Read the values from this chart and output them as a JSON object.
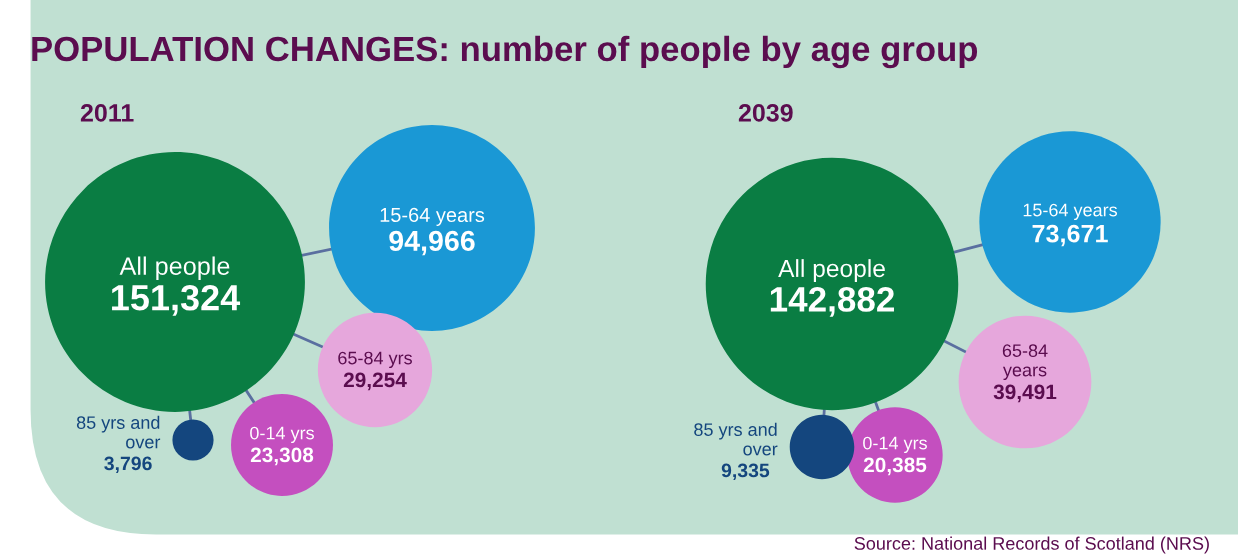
{
  "chart_data": [
    {
      "type": "other",
      "title": "POPULATION CHANGES: number of people by age group",
      "subtitle": "2011",
      "categories": [
        "All people",
        "15-64 years",
        "65-84 yrs",
        "0-14 yrs",
        "85 yrs and\nover"
      ],
      "values": [
        151324,
        94966,
        29254,
        23308,
        3796
      ],
      "value_labels": [
        "151,324",
        "94,966",
        "29,254",
        "23,308",
        "3,796"
      ],
      "colors": [
        "#0a7d43",
        "#1a98d5",
        "#e6a7dc",
        "#c44fbf",
        "#14467e"
      ]
    },
    {
      "type": "other",
      "subtitle": "2039",
      "categories": [
        "All people",
        "15-64 years",
        "65-84\nyears",
        "0-14 yrs",
        "85 yrs and\nover"
      ],
      "values": [
        142882,
        73671,
        39491,
        20385,
        9335
      ],
      "value_labels": [
        "142,882",
        "73,671",
        "39,491",
        "20,385",
        "9,335"
      ],
      "colors": [
        "#0a7d43",
        "#1a98d5",
        "#e6a7dc",
        "#c44fbf",
        "#14467e"
      ],
      "annotations": [
        "Source: National Records of Scotland (NRS)"
      ]
    }
  ]
}
